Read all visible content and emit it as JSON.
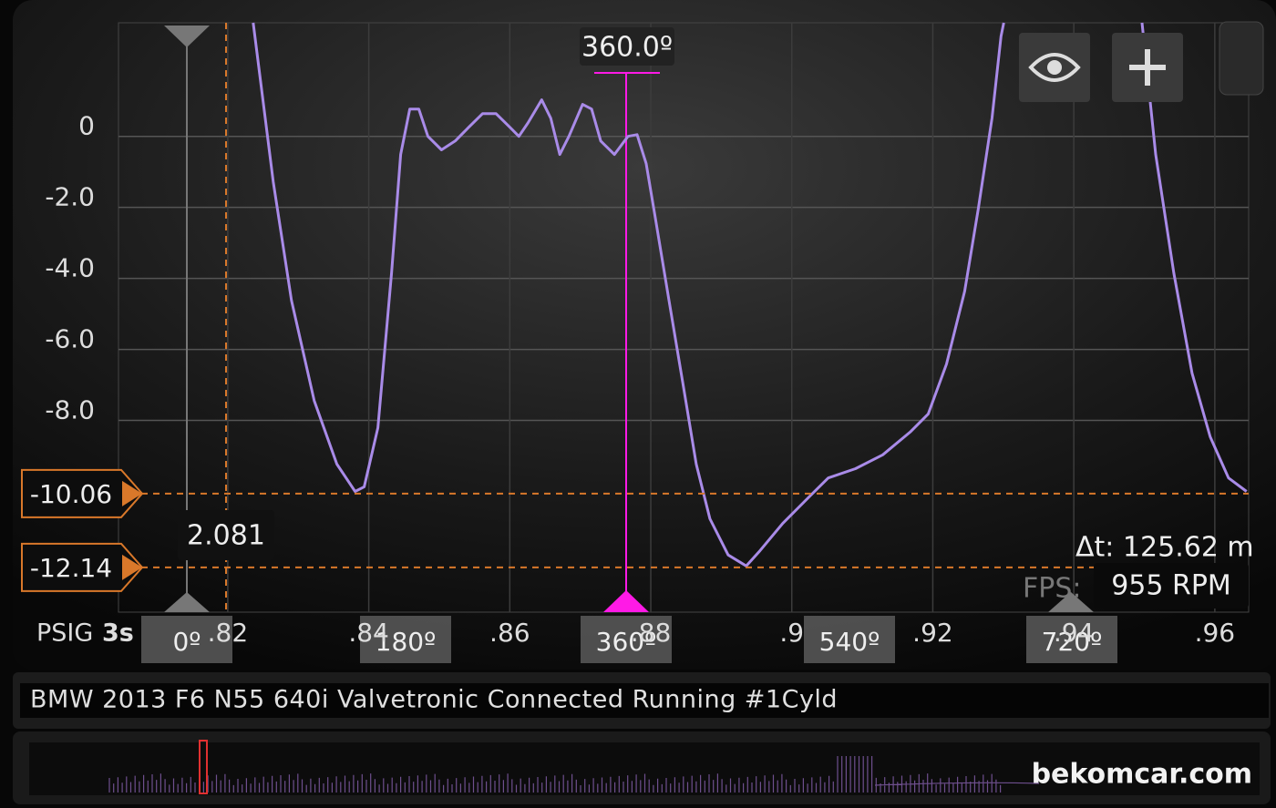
{
  "chart_data": {
    "type": "line",
    "x": [
      0.82361,
      0.82645,
      0.82903,
      0.83226,
      0.83548,
      0.83806,
      0.83935,
      0.84129,
      0.84323,
      0.84452,
      0.84581,
      0.8471,
      0.84839,
      0.85032,
      0.85226,
      0.85419,
      0.85613,
      0.85806,
      0.86,
      0.86129,
      0.86258,
      0.86452,
      0.86581,
      0.8671,
      0.86839,
      0.87032,
      0.87161,
      0.8729,
      0.87484,
      0.87677,
      0.87806,
      0.87935,
      0.88065,
      0.88258,
      0.88452,
      0.88645,
      0.88839,
      0.89097,
      0.89355,
      0.89548,
      0.89871,
      0.90258,
      0.90516,
      0.90903,
      0.9129,
      0.91677,
      0.91935,
      0.92194,
      0.92452,
      0.92645,
      0.92839,
      0.92968,
      0.93006,
      null,
      0.94968,
      0.95161,
      0.95419,
      0.95677,
      0.95935,
      0.96194,
      0.9645
    ],
    "series": [
      {
        "color": "#a98be8",
        "values": [
          3.2,
          -1.28,
          -4.62,
          -7.44,
          -9.23,
          -10.0,
          -9.87,
          -8.21,
          -3.85,
          -0.51,
          0.77,
          0.77,
          0,
          -0.38,
          -0.13,
          0.26,
          0.64,
          0.64,
          0.26,
          0,
          0.38,
          1.03,
          0.51,
          -0.51,
          0,
          0.9,
          0.77,
          -0.13,
          -0.51,
          0,
          0.05,
          -0.77,
          -2.31,
          -4.62,
          -6.92,
          -9.23,
          -10.77,
          -11.79,
          -12.1,
          -11.67,
          -10.9,
          -10.13,
          -9.62,
          -9.36,
          -8.97,
          -8.33,
          -7.82,
          -6.41,
          -4.36,
          -2.05,
          0.51,
          2.82,
          3.2,
          null,
          3.2,
          -0.51,
          -3.85,
          -6.67,
          -8.46,
          -9.62,
          -10.0
        ]
      }
    ],
    "xlim": [
      0.8045,
      0.9648
    ],
    "ylim": [
      -13.4,
      3.2
    ],
    "xticks": [
      {
        "value": 0.82,
        "label": ".82"
      },
      {
        "value": 0.84,
        "label": ".84"
      },
      {
        "value": 0.86,
        "label": ".86"
      },
      {
        "value": 0.88,
        "label": ".88"
      },
      {
        "value": 0.9,
        "label": ".9"
      },
      {
        "value": 0.92,
        "label": ".92"
      },
      {
        "value": 0.94,
        "label": ".94"
      },
      {
        "value": 0.96,
        "label": ".96"
      }
    ],
    "yticks": [
      0,
      {
        "value": -2,
        "label": "-2.0"
      },
      {
        "value": -4,
        "label": "-4.0"
      },
      {
        "value": -6,
        "label": "-6.0"
      },
      {
        "value": -8,
        "label": "-8.0"
      }
    ],
    "cursors": [
      -10.06,
      -12.14
    ],
    "cursor_color": "#d9782a",
    "grid": true,
    "y_unit": "PSIG",
    "x_unit": "3s"
  },
  "ui": {
    "cursor_angle": "360.0º",
    "degree_labels": [
      "0º",
      "180º",
      "360º",
      "540º",
      "720º"
    ],
    "readout": "2.081",
    "delta_t": "Δt: 125.62 m",
    "fps": "FPS:",
    "rpm": "955 RPM",
    "title": "BMW 2013 F6 N55 640i Valvetronic Connected Running #1Cyld",
    "watermark": "bekomcar.com"
  }
}
